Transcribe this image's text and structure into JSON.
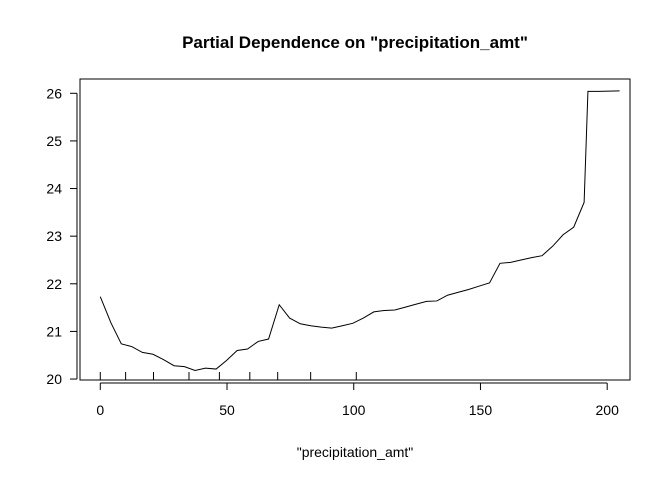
{
  "chart_data": {
    "type": "line",
    "title": "Partial Dependence on \"precipitation_amt\"",
    "xlabel": "\"precipitation_amt\"",
    "ylabel": "",
    "xlim": [
      -8,
      209
    ],
    "ylim": [
      19.98,
      26.3
    ],
    "x_ticks": [
      0,
      50,
      100,
      150,
      200
    ],
    "y_ticks": [
      20,
      21,
      22,
      23,
      24,
      25,
      26
    ],
    "grid": false,
    "legend": "none",
    "line_color": "#000000",
    "series": [
      {
        "x": [
          0,
          4.2,
          8.3,
          12.5,
          16.6,
          20.8,
          24.9,
          29.1,
          33.2,
          37.4,
          41.5,
          45.7,
          49.8,
          54.0,
          58.1,
          62.3,
          66.4,
          70.6,
          74.7,
          78.9,
          83.0,
          87.2,
          91.3,
          95.5,
          99.6,
          103.8,
          107.9,
          112.1,
          116.2,
          120.4,
          124.5,
          128.7,
          132.8,
          137.0,
          141.1,
          145.3,
          149.4,
          153.6,
          157.7,
          161.9,
          166.0,
          170.2,
          174.3,
          178.5,
          182.6,
          186.8,
          190.9,
          192.4,
          196.6,
          204.9
        ],
        "y": [
          21.73,
          21.18,
          20.74,
          20.68,
          20.56,
          20.52,
          20.41,
          20.28,
          20.26,
          20.18,
          20.23,
          20.21,
          20.39,
          20.6,
          20.63,
          20.79,
          20.84,
          21.56,
          21.28,
          21.16,
          21.12,
          21.09,
          21.07,
          21.12,
          21.17,
          21.28,
          21.41,
          21.44,
          21.45,
          21.51,
          21.57,
          21.63,
          21.64,
          21.76,
          21.82,
          21.88,
          21.95,
          22.02,
          22.43,
          22.45,
          22.5,
          22.55,
          22.59,
          22.79,
          23.03,
          23.19,
          23.71,
          26.04,
          26.04,
          26.05
        ]
      }
    ],
    "rug_x": [
      0,
      10,
      21,
      35,
      47,
      59,
      70,
      83,
      101
    ]
  }
}
